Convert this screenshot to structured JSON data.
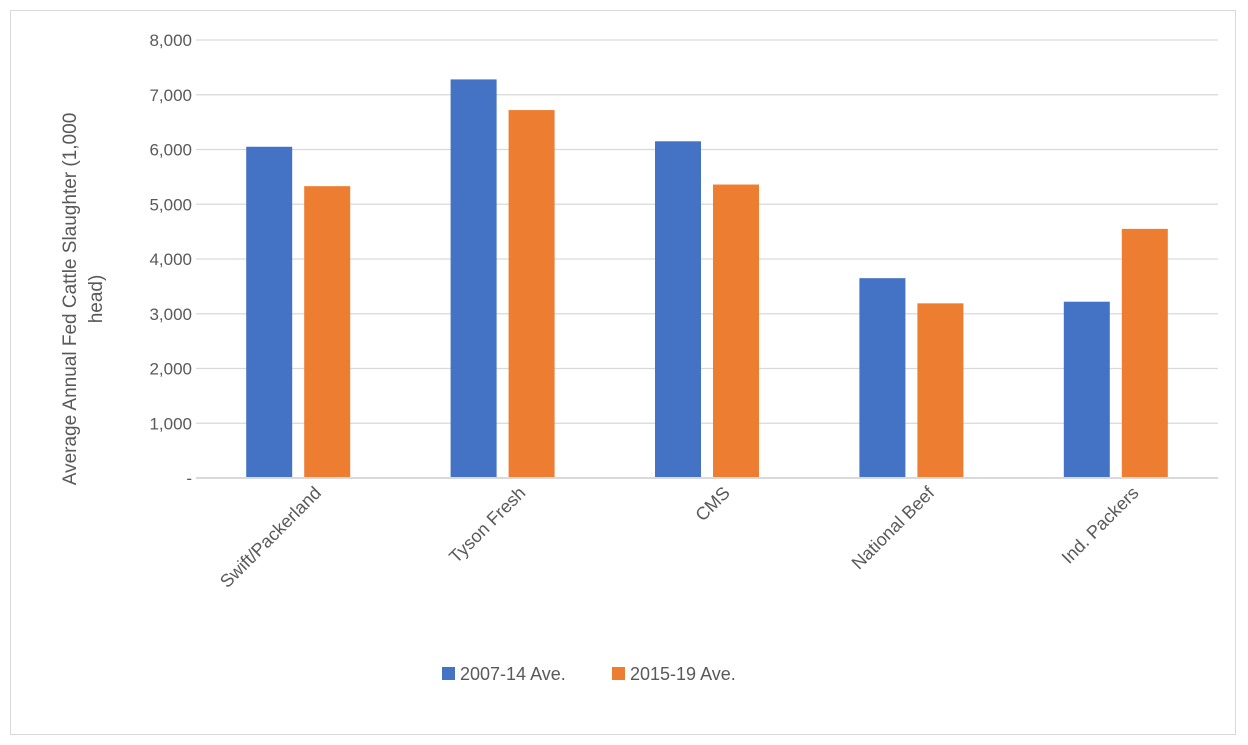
{
  "chart_data": {
    "type": "bar",
    "title": "",
    "xlabel": "",
    "ylabel_lines": [
      "Average Annual  Fed Cattle Slaughter  (1,000",
      "head)"
    ],
    "categories": [
      "Swift/Packerland",
      "Tyson Fresh",
      "CMS",
      "National Beef",
      "Ind. Packers"
    ],
    "series": [
      {
        "name": "2007-14 Ave.",
        "color": "#4472c4",
        "values": [
          6050,
          7280,
          6150,
          3650,
          3220
        ]
      },
      {
        "name": "2015-19 Ave.",
        "color": "#ed7d31",
        "values": [
          5330,
          6720,
          5360,
          3190,
          4550
        ]
      }
    ],
    "ylim": [
      0,
      8000
    ],
    "yticks": [
      0,
      1000,
      2000,
      3000,
      4000,
      5000,
      6000,
      7000,
      8000
    ],
    "ytick_labels": [
      "-",
      "1,000",
      "2,000",
      "3,000",
      "4,000",
      "5,000",
      "6,000",
      "7,000",
      "8,000"
    ],
    "grid": true,
    "legend_position": "bottom"
  }
}
